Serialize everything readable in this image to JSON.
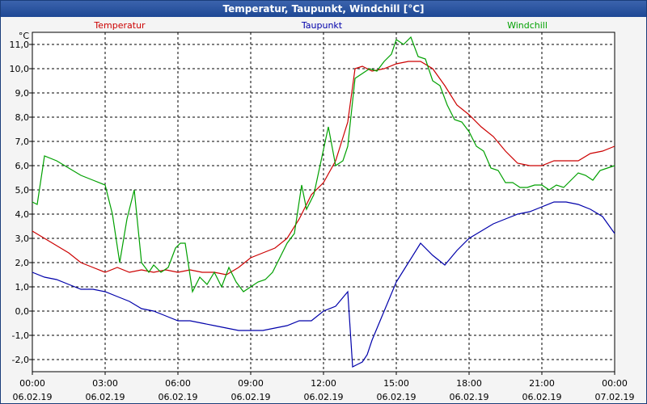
{
  "window": {
    "title": "Temperatur, Taupunkt, Windchill [°C]"
  },
  "chart_data": {
    "type": "line",
    "title": "Temperatur, Taupunkt, Windchill [°C]",
    "y_unit_label": "°C",
    "ylim": [
      -2.5,
      11.5
    ],
    "y_ticks": [
      "-2,0",
      "-1,0",
      "0,0",
      "1,0",
      "2,0",
      "3,0",
      "4,0",
      "5,0",
      "6,0",
      "7,0",
      "8,0",
      "9,0",
      "10,0",
      "11,0"
    ],
    "y_tick_values": [
      -2,
      -1,
      0,
      1,
      2,
      3,
      4,
      5,
      6,
      7,
      8,
      9,
      10,
      11
    ],
    "x_unit": "hours since 06.02.19 00:00",
    "xlim": [
      0,
      24
    ],
    "x_ticks": [
      {
        "time": "00:00",
        "date": "06.02.19"
      },
      {
        "time": "03:00",
        "date": "06.02.19"
      },
      {
        "time": "06:00",
        "date": "06.02.19"
      },
      {
        "time": "09:00",
        "date": "06.02.19"
      },
      {
        "time": "12:00",
        "date": "06.02.19"
      },
      {
        "time": "15:00",
        "date": "06.02.19"
      },
      {
        "time": "18:00",
        "date": "06.02.19"
      },
      {
        "time": "21:00",
        "date": "06.02.19"
      },
      {
        "time": "00:00",
        "date": "07.02.19"
      }
    ],
    "grid": true,
    "legend_placement": "top",
    "series": [
      {
        "name": "Temperatur",
        "color": "#cc0000",
        "x": [
          0,
          0.5,
          1,
          1.5,
          2,
          2.5,
          3,
          3.5,
          4,
          4.5,
          5,
          5.5,
          6,
          6.5,
          7,
          7.5,
          8,
          8.5,
          9,
          9.5,
          10,
          10.5,
          11,
          11.5,
          12,
          12.5,
          13,
          13.3,
          13.6,
          14,
          14.5,
          15,
          15.5,
          16,
          16.5,
          17,
          17.5,
          18,
          18.5,
          19,
          19.5,
          20,
          20.5,
          21,
          21.5,
          22,
          22.5,
          23,
          23.5,
          24
        ],
        "y": [
          3.3,
          3.0,
          2.7,
          2.4,
          2.0,
          1.8,
          1.6,
          1.8,
          1.6,
          1.7,
          1.6,
          1.7,
          1.6,
          1.7,
          1.6,
          1.6,
          1.5,
          1.8,
          2.2,
          2.4,
          2.6,
          3.0,
          3.8,
          4.8,
          5.3,
          6.2,
          7.8,
          10.0,
          10.1,
          9.9,
          10.0,
          10.2,
          10.3,
          10.3,
          10.0,
          9.3,
          8.5,
          8.1,
          7.6,
          7.2,
          6.6,
          6.1,
          6.0,
          6.0,
          6.2,
          6.2,
          6.2,
          6.5,
          6.6,
          6.8
        ]
      },
      {
        "name": "Taupunkt",
        "color": "#0000aa",
        "x": [
          0,
          0.5,
          1,
          1.5,
          2,
          2.5,
          3,
          3.5,
          4,
          4.5,
          5,
          5.5,
          6,
          6.5,
          7,
          7.5,
          8,
          8.5,
          9,
          9.5,
          10,
          10.5,
          11,
          11.5,
          12,
          12.5,
          13,
          13.2,
          13.4,
          13.6,
          13.8,
          14,
          14.5,
          15,
          15.5,
          16,
          16.5,
          17,
          17.5,
          18,
          18.5,
          19,
          19.5,
          20,
          20.5,
          21,
          21.5,
          22,
          22.5,
          23,
          23.5,
          24
        ],
        "y": [
          1.6,
          1.4,
          1.3,
          1.1,
          0.9,
          0.9,
          0.8,
          0.6,
          0.4,
          0.1,
          0.0,
          -0.2,
          -0.4,
          -0.4,
          -0.5,
          -0.6,
          -0.7,
          -0.8,
          -0.8,
          -0.8,
          -0.7,
          -0.6,
          -0.4,
          -0.4,
          0.0,
          0.2,
          0.8,
          -2.3,
          -2.2,
          -2.1,
          -1.8,
          -1.2,
          0.0,
          1.2,
          2.0,
          2.8,
          2.3,
          1.9,
          2.5,
          3.0,
          3.3,
          3.6,
          3.8,
          4.0,
          4.1,
          4.3,
          4.5,
          4.5,
          4.4,
          4.2,
          3.9,
          3.2
        ]
      },
      {
        "name": "Windchill",
        "color": "#00a000",
        "x": [
          0,
          0.2,
          0.5,
          1,
          1.5,
          2,
          2.5,
          3,
          3.3,
          3.6,
          3.9,
          4.2,
          4.5,
          4.8,
          5,
          5.3,
          5.6,
          5.9,
          6.1,
          6.3,
          6.6,
          6.9,
          7.2,
          7.5,
          7.8,
          8.1,
          8.4,
          8.7,
          9,
          9.3,
          9.6,
          9.9,
          10.2,
          10.5,
          10.8,
          11.1,
          11.3,
          11.6,
          11.9,
          12.2,
          12.5,
          12.8,
          13,
          13.3,
          13.6,
          13.9,
          14.2,
          14.5,
          14.8,
          15,
          15.3,
          15.6,
          15.9,
          16.2,
          16.5,
          16.8,
          17.1,
          17.4,
          17.7,
          18,
          18.3,
          18.6,
          18.9,
          19.2,
          19.5,
          19.8,
          20.1,
          20.4,
          20.7,
          21,
          21.3,
          21.6,
          21.9,
          22.2,
          22.5,
          22.8,
          23.1,
          23.4,
          23.7,
          24
        ],
        "y": [
          4.5,
          4.4,
          6.4,
          6.2,
          5.9,
          5.6,
          5.4,
          5.2,
          4.0,
          2.0,
          3.8,
          5.0,
          2.0,
          1.6,
          1.9,
          1.6,
          1.8,
          2.6,
          2.8,
          2.8,
          0.8,
          1.4,
          1.1,
          1.6,
          1.0,
          1.8,
          1.2,
          0.8,
          1.0,
          1.2,
          1.3,
          1.6,
          2.2,
          2.8,
          3.2,
          5.2,
          4.2,
          4.8,
          6.2,
          7.6,
          6.0,
          6.2,
          6.8,
          9.6,
          9.8,
          10.0,
          9.9,
          10.3,
          10.6,
          11.2,
          11.0,
          11.3,
          10.5,
          10.4,
          9.5,
          9.3,
          8.5,
          7.9,
          7.8,
          7.4,
          6.8,
          6.6,
          5.9,
          5.8,
          5.3,
          5.3,
          5.1,
          5.1,
          5.2,
          5.2,
          5.0,
          5.2,
          5.1,
          5.4,
          5.7,
          5.6,
          5.4,
          5.8,
          5.9,
          6.0
        ]
      }
    ]
  }
}
